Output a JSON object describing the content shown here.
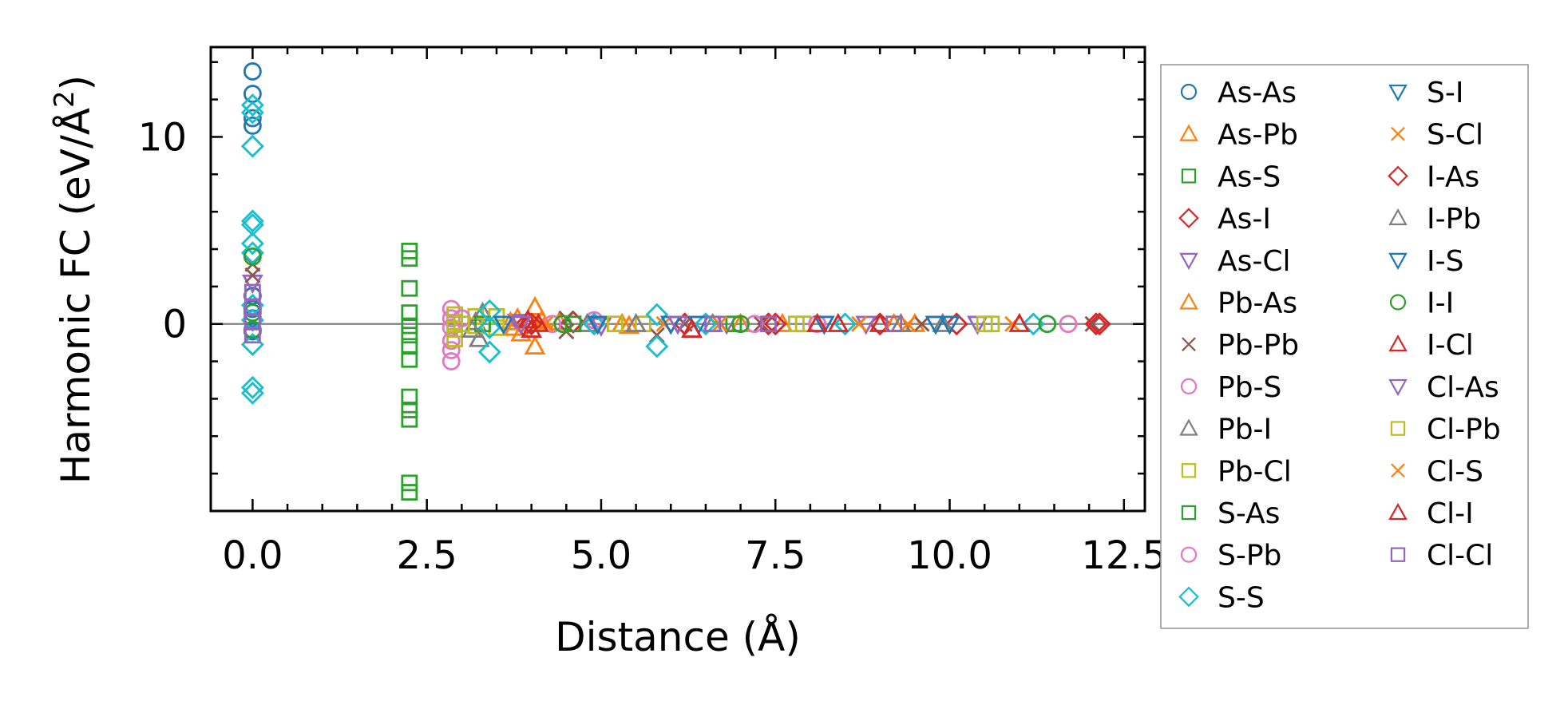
{
  "chart_data": {
    "type": "scatter",
    "title": "",
    "xlabel": "Distance (Å)",
    "ylabel_main": "Harmonic FC (eV/Å",
    "ylabel_sup": "2",
    "ylabel_close": ")",
    "xlim": [
      -0.6,
      12.8
    ],
    "ylim": [
      -10.0,
      14.8
    ],
    "xticks": [
      0.0,
      2.5,
      5.0,
      7.5,
      10.0,
      12.5
    ],
    "xtick_labels": [
      "0.0",
      "2.5",
      "5.0",
      "7.5",
      "10.0",
      "12.5"
    ],
    "yticks": [
      0,
      10
    ],
    "ytick_labels": [
      "0",
      "10"
    ],
    "x_minor_step": 0.5,
    "y_minor_step": 2,
    "zero_line": true,
    "grid": false,
    "legend_position": "outside-right",
    "series": [
      {
        "name": "As-As",
        "marker": "circle",
        "color": "#1f77b4",
        "points": [
          [
            0,
            13.5
          ],
          [
            0,
            12.3
          ],
          [
            0,
            11.0
          ],
          [
            0,
            10.6
          ],
          [
            0,
            1.5
          ],
          [
            0,
            0.8
          ],
          [
            0,
            0.3
          ],
          [
            0,
            -0.4
          ]
        ]
      },
      {
        "name": "As-Pb",
        "marker": "triangle-up",
        "color": "#ff7f0e",
        "points": [
          [
            3.75,
            -0.2
          ],
          [
            3.8,
            0.3
          ],
          [
            4.05,
            0.9
          ],
          [
            4.05,
            -1.2
          ],
          [
            4.4,
            0.1
          ],
          [
            5.4,
            -0.1
          ],
          [
            7.6,
            0.0
          ],
          [
            9.5,
            0.0
          ]
        ]
      },
      {
        "name": "As-S",
        "marker": "square",
        "color": "#2ca02c",
        "points": [
          [
            2.25,
            3.9
          ],
          [
            2.25,
            3.5
          ],
          [
            2.25,
            1.9
          ],
          [
            2.25,
            0.6
          ],
          [
            2.25,
            -0.1
          ],
          [
            2.25,
            -0.6
          ],
          [
            2.25,
            -1.2
          ],
          [
            2.25,
            -1.9
          ],
          [
            2.25,
            -3.9
          ],
          [
            2.25,
            -4.6
          ],
          [
            2.25,
            -5.1
          ],
          [
            2.25,
            -8.5
          ],
          [
            2.25,
            -9.0
          ]
        ]
      },
      {
        "name": "As-I",
        "marker": "diamond",
        "color": "#d62728",
        "points": [
          [
            3.9,
            -0.1
          ],
          [
            4.6,
            0.1
          ],
          [
            6.2,
            0.0
          ],
          [
            7.4,
            0.0
          ],
          [
            9.0,
            0.0
          ],
          [
            10.1,
            0.0
          ],
          [
            12.15,
            0.0
          ]
        ]
      },
      {
        "name": "As-Cl",
        "marker": "triangle-down",
        "color": "#9467bd",
        "points": [
          [
            0,
            2.2
          ],
          [
            3.8,
            0.1
          ],
          [
            5.0,
            -0.1
          ],
          [
            6.8,
            0.0
          ],
          [
            8.8,
            0.0
          ],
          [
            10.4,
            0.0
          ]
        ]
      },
      {
        "name": "Pb-As",
        "marker": "triangle-up",
        "color": "#ff7f0e",
        "points": [
          [
            3.7,
            0.1
          ],
          [
            3.85,
            -0.5
          ],
          [
            4.15,
            0.2
          ],
          [
            5.3,
            0.0
          ],
          [
            7.0,
            0.0
          ],
          [
            9.2,
            0.0
          ]
        ]
      },
      {
        "name": "Pb-Pb",
        "marker": "x",
        "color": "#8c564b",
        "points": [
          [
            0,
            3.2
          ],
          [
            0,
            2.6
          ],
          [
            4.5,
            0.3
          ],
          [
            4.5,
            -0.4
          ],
          [
            5.8,
            -0.6
          ],
          [
            6.2,
            0.0
          ],
          [
            7.3,
            0.0
          ],
          [
            9.6,
            0.0
          ],
          [
            12.05,
            0.0
          ]
        ]
      },
      {
        "name": "Pb-S",
        "marker": "circle",
        "color": "#e377c2",
        "points": [
          [
            2.85,
            0.8
          ],
          [
            2.85,
            0.3
          ],
          [
            2.85,
            -0.2
          ],
          [
            2.85,
            -0.9
          ],
          [
            2.85,
            -1.4
          ],
          [
            2.85,
            -2.0
          ],
          [
            4.9,
            0.2
          ],
          [
            7.2,
            0.0
          ],
          [
            11.7,
            0.0
          ]
        ]
      },
      {
        "name": "Pb-I",
        "marker": "triangle-up",
        "color": "#7f7f7f",
        "points": [
          [
            3.2,
            0.1
          ],
          [
            3.25,
            -0.8
          ],
          [
            3.3,
            0.6
          ],
          [
            4.8,
            0.0
          ],
          [
            6.6,
            0.0
          ],
          [
            9.9,
            0.0
          ]
        ]
      },
      {
        "name": "Pb-Cl",
        "marker": "square",
        "color": "#bcbd22",
        "points": [
          [
            2.9,
            0.5
          ],
          [
            2.9,
            0.1
          ],
          [
            2.9,
            -0.3
          ],
          [
            2.9,
            -0.8
          ],
          [
            3.2,
            0.4
          ],
          [
            3.2,
            -0.1
          ],
          [
            3.5,
            0.4
          ],
          [
            3.5,
            -0.2
          ],
          [
            5.6,
            0.0
          ],
          [
            7.9,
            0.0
          ],
          [
            10.5,
            0.0
          ]
        ]
      },
      {
        "name": "S-As",
        "marker": "square",
        "color": "#2ca02c",
        "points": [
          [
            3.3,
            0.0
          ],
          [
            4.6,
            0.0
          ],
          [
            6.9,
            0.0
          ]
        ]
      },
      {
        "name": "S-Pb",
        "marker": "circle",
        "color": "#e377c2",
        "points": [
          [
            3.0,
            0.3
          ],
          [
            4.3,
            0.0
          ],
          [
            8.1,
            0.0
          ]
        ]
      },
      {
        "name": "S-S",
        "marker": "diamond",
        "color": "#17becf",
        "points": [
          [
            0,
            11.7
          ],
          [
            0,
            11.3
          ],
          [
            0,
            9.5
          ],
          [
            0,
            5.5
          ],
          [
            0,
            5.3
          ],
          [
            0,
            4.3
          ],
          [
            0,
            3.8
          ],
          [
            0,
            1.0
          ],
          [
            0,
            0.2
          ],
          [
            0,
            -1.1
          ],
          [
            0,
            -3.4
          ],
          [
            0,
            -3.7
          ],
          [
            3.4,
            0.7
          ],
          [
            3.4,
            -0.2
          ],
          [
            3.4,
            -1.5
          ],
          [
            4.9,
            0.0
          ],
          [
            5.8,
            0.5
          ],
          [
            5.8,
            -1.2
          ],
          [
            6.5,
            0.0
          ],
          [
            8.5,
            0.0
          ],
          [
            11.2,
            0.0
          ]
        ]
      },
      {
        "name": "S-I",
        "marker": "triangle-down",
        "color": "#1f77b4",
        "points": [
          [
            4.95,
            0.0
          ],
          [
            6.4,
            0.0
          ],
          [
            8.2,
            0.0
          ],
          [
            10.0,
            0.0
          ]
        ]
      },
      {
        "name": "S-Cl",
        "marker": "x",
        "color": "#ff7f0e",
        "points": [
          [
            4.1,
            0.0
          ],
          [
            5.9,
            0.0
          ],
          [
            8.7,
            0.0
          ],
          [
            10.9,
            0.0
          ]
        ]
      },
      {
        "name": "I-As",
        "marker": "diamond",
        "color": "#d62728",
        "points": [
          [
            4.0,
            0.0
          ],
          [
            7.5,
            0.0
          ],
          [
            12.1,
            0.0
          ]
        ]
      },
      {
        "name": "I-Pb",
        "marker": "triangle-up",
        "color": "#7f7f7f",
        "points": [
          [
            3.15,
            -0.3
          ],
          [
            5.5,
            0.0
          ],
          [
            9.3,
            0.0
          ]
        ]
      },
      {
        "name": "I-S",
        "marker": "triangle-down",
        "color": "#1f77b4",
        "points": [
          [
            3.6,
            0.0
          ],
          [
            6.0,
            0.0
          ],
          [
            9.8,
            0.0
          ]
        ]
      },
      {
        "name": "I-I",
        "marker": "circle",
        "color": "#2ca02c",
        "points": [
          [
            0,
            3.6
          ],
          [
            0,
            0.6
          ],
          [
            0,
            -0.3
          ],
          [
            4.45,
            0.0
          ],
          [
            7.0,
            0.0
          ],
          [
            11.4,
            0.0
          ]
        ]
      },
      {
        "name": "I-Cl",
        "marker": "triangle-up",
        "color": "#d62728",
        "points": [
          [
            3.95,
            0.2
          ],
          [
            4.0,
            -0.3
          ],
          [
            6.3,
            -0.3
          ],
          [
            8.1,
            0.0
          ],
          [
            9.0,
            0.0
          ],
          [
            11.0,
            0.0
          ]
        ]
      },
      {
        "name": "Cl-As",
        "marker": "triangle-down",
        "color": "#9467bd",
        "points": [
          [
            3.85,
            0.0
          ],
          [
            6.1,
            0.0
          ]
        ]
      },
      {
        "name": "Cl-Pb",
        "marker": "square",
        "color": "#bcbd22",
        "points": [
          [
            3.0,
            0.0
          ],
          [
            5.2,
            0.0
          ],
          [
            7.8,
            0.0
          ],
          [
            10.6,
            0.0
          ]
        ]
      },
      {
        "name": "Cl-S",
        "marker": "x",
        "color": "#ff7f0e",
        "points": [
          [
            4.2,
            0.0
          ],
          [
            6.7,
            0.0
          ],
          [
            9.4,
            0.0
          ]
        ]
      },
      {
        "name": "Cl-I",
        "marker": "triangle-up",
        "color": "#d62728",
        "points": [
          [
            4.1,
            0.0
          ],
          [
            8.4,
            0.0
          ]
        ]
      },
      {
        "name": "Cl-Cl",
        "marker": "square",
        "color": "#9467bd",
        "points": [
          [
            0,
            1.7
          ],
          [
            0,
            0.9
          ],
          [
            0,
            0.1
          ],
          [
            0,
            -0.6
          ],
          [
            6.6,
            0.0
          ],
          [
            7.4,
            0.0
          ],
          [
            9.2,
            0.0
          ]
        ]
      }
    ]
  }
}
